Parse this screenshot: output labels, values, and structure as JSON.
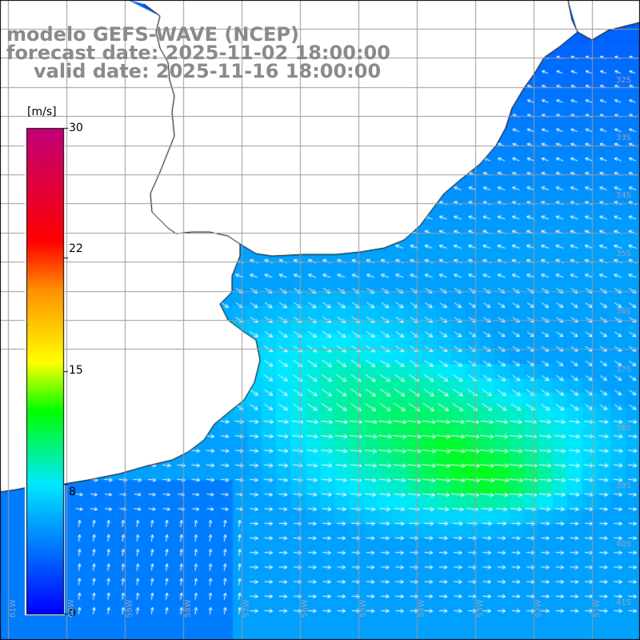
{
  "titles": {
    "model": "modelo GEFS-WAVE (NCEP)",
    "forecast": "forecast date: 2025-11-02 18:00:00",
    "valid": "valid date: 2025-11-16 18:00:00"
  },
  "colorbar": {
    "unit": "[m/s]",
    "ticks": [
      "30",
      "22",
      "15",
      "8",
      "0"
    ],
    "tick_values": [
      30,
      22,
      15,
      8,
      0
    ],
    "min": 0,
    "max": 30,
    "colors": [
      "#0000ff",
      "#00e8ff",
      "#00ff00",
      "#ffff00",
      "#ff9000",
      "#ff0000",
      "#c0007a"
    ]
  },
  "axes": {
    "lat_labels": [
      "32S",
      "33S",
      "34S",
      "35S",
      "36S",
      "37S",
      "38S",
      "39S",
      "40S",
      "41S"
    ],
    "lon_labels": [
      "61W",
      "60W",
      "59W",
      "58W",
      "57W",
      "56W",
      "55W",
      "54W",
      "53W",
      "52W",
      "51W"
    ],
    "gridlines": true
  },
  "colors": {
    "land": "#ffffff",
    "coast": "#000000",
    "grid": "#9a9a9a",
    "arrow": "#ffffff",
    "title": "#8a8a8a"
  }
}
